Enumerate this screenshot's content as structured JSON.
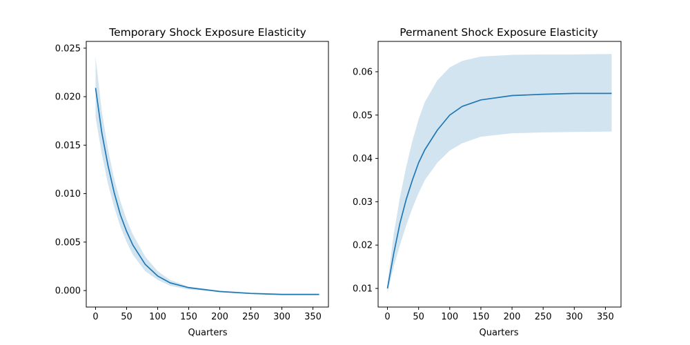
{
  "colors": {
    "line": "#1f77b4",
    "band": "#1f77b4"
  },
  "chart_data": [
    {
      "type": "line",
      "title": "Temporary Shock Exposure Elasticity",
      "xlabel": "Quarters",
      "ylabel": "",
      "xlim": [
        -15,
        375
      ],
      "ylim": [
        -0.0017,
        0.0257
      ],
      "xticks": [
        0,
        50,
        100,
        150,
        200,
        250,
        300,
        350
      ],
      "yticks": [
        0.0,
        0.005,
        0.01,
        0.015,
        0.02,
        0.025
      ],
      "ytick_labels": [
        "0.000",
        "0.005",
        "0.010",
        "0.015",
        "0.020",
        "0.025"
      ],
      "grid": false,
      "series": [
        {
          "x": [
            0,
            10,
            20,
            30,
            40,
            50,
            60,
            80,
            100,
            120,
            150,
            200,
            250,
            300,
            360
          ],
          "y": [
            0.0209,
            0.0163,
            0.0129,
            0.0101,
            0.0078,
            0.0061,
            0.0047,
            0.0027,
            0.0015,
            0.0008,
            0.0003,
            -0.0001,
            -0.0003,
            -0.0004,
            -0.0004
          ],
          "lower": [
            0.0179,
            0.0141,
            0.011,
            0.0086,
            0.0066,
            0.005,
            0.0037,
            0.002,
            0.0011,
            0.0005,
            0.0001,
            -0.0001,
            -0.0003,
            -0.0004,
            -0.0004
          ],
          "upper": [
            0.0241,
            0.0185,
            0.0146,
            0.0115,
            0.0092,
            0.0073,
            0.0058,
            0.0035,
            0.002,
            0.0011,
            0.0004,
            0.0,
            -0.0002,
            -0.0003,
            -0.0003
          ]
        }
      ]
    },
    {
      "type": "line",
      "title": "Permanent Shock Exposure Elasticity",
      "xlabel": "Quarters",
      "ylabel": "",
      "xlim": [
        -15,
        375
      ],
      "ylim": [
        0.0057,
        0.067
      ],
      "xticks": [
        0,
        50,
        100,
        150,
        200,
        250,
        300,
        350
      ],
      "yticks": [
        0.01,
        0.02,
        0.03,
        0.04,
        0.05,
        0.06
      ],
      "ytick_labels": [
        "0.01",
        "0.02",
        "0.03",
        "0.04",
        "0.05",
        "0.06"
      ],
      "grid": false,
      "series": [
        {
          "x": [
            0,
            10,
            20,
            30,
            40,
            50,
            60,
            80,
            100,
            120,
            150,
            200,
            250,
            300,
            360
          ],
          "y": [
            0.01,
            0.018,
            0.025,
            0.0305,
            0.035,
            0.039,
            0.042,
            0.0465,
            0.05,
            0.052,
            0.0535,
            0.0545,
            0.0548,
            0.055,
            0.055
          ],
          "lower": [
            0.009,
            0.015,
            0.02,
            0.0245,
            0.0285,
            0.032,
            0.035,
            0.039,
            0.0418,
            0.0435,
            0.045,
            0.0458,
            0.046,
            0.0461,
            0.0462
          ],
          "upper": [
            0.011,
            0.0225,
            0.031,
            0.038,
            0.044,
            0.049,
            0.053,
            0.058,
            0.061,
            0.0625,
            0.0635,
            0.0639,
            0.064,
            0.064,
            0.0641
          ]
        }
      ]
    }
  ]
}
